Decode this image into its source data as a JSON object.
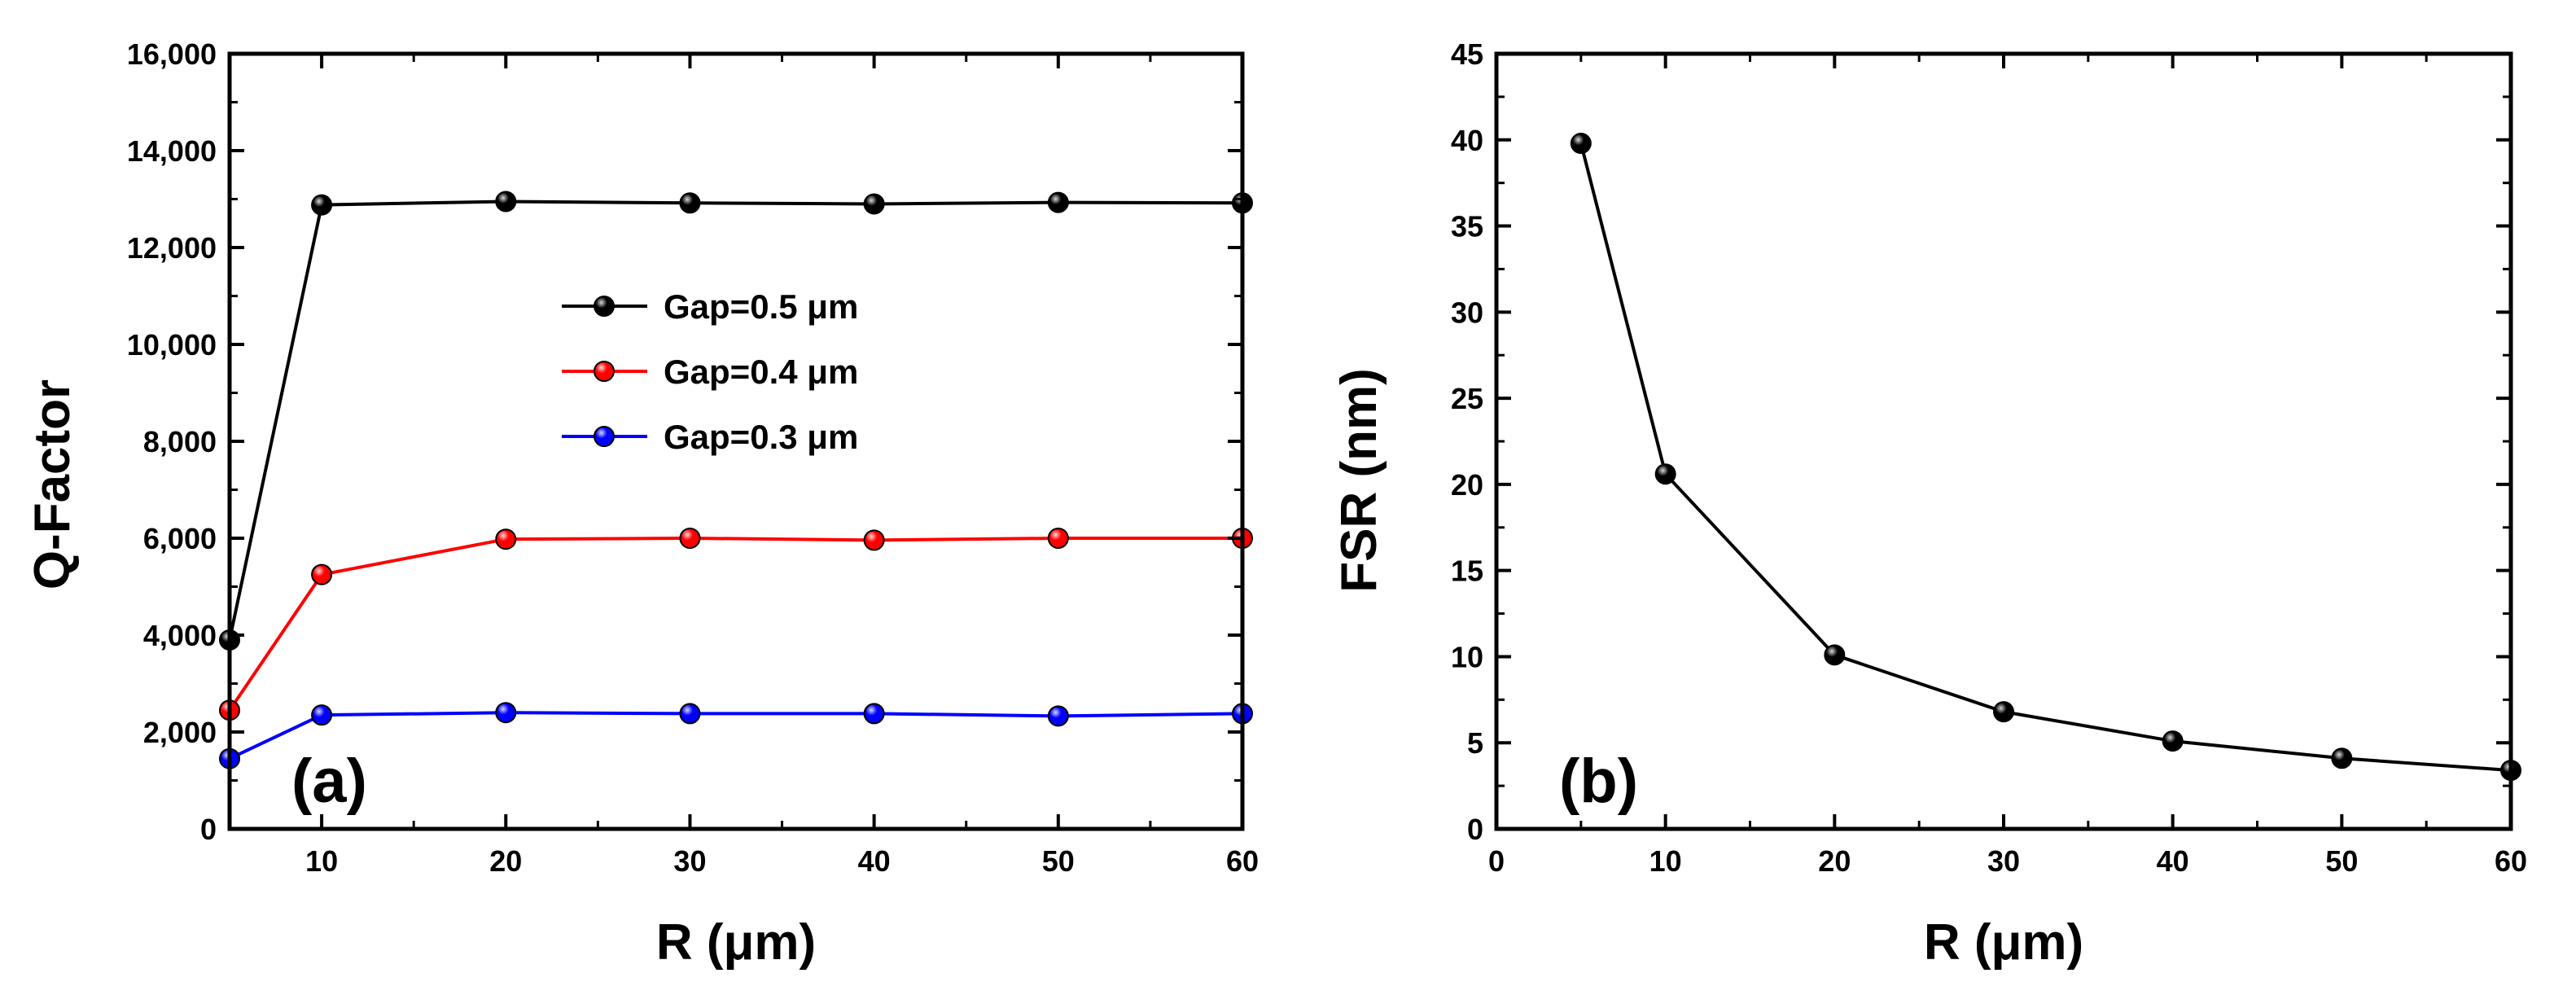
{
  "chart_data": [
    {
      "type": "line",
      "panel_label": "(a)",
      "title": "",
      "xlabel": "R (μm)",
      "ylabel": "Q-Factor",
      "xlim": [
        5,
        60
      ],
      "ylim": [
        0,
        16000
      ],
      "xticks": [
        10,
        20,
        30,
        40,
        50,
        60
      ],
      "xtick_labels": [
        "10",
        "20",
        "30",
        "40",
        "50",
        "60"
      ],
      "yticks": [
        0,
        2000,
        4000,
        6000,
        8000,
        10000,
        12000,
        14000,
        16000
      ],
      "ytick_labels": [
        "0",
        "2,000",
        "4,000",
        "6,000",
        "8,000",
        "10,000",
        "12,000",
        "14,000",
        "16,000"
      ],
      "legend_position": "upper-center",
      "x": [
        5,
        10,
        20,
        30,
        40,
        50,
        60
      ],
      "series": [
        {
          "name": "Gap=0.5 μm",
          "color": "#000000",
          "values": [
            3900,
            12880,
            12950,
            12920,
            12900,
            12930,
            12920
          ]
        },
        {
          "name": "Gap=0.4 μm",
          "color": "#ff0000",
          "values": [
            2450,
            5250,
            5980,
            6000,
            5960,
            6000,
            6000
          ]
        },
        {
          "name": "Gap=0.3 μm",
          "color": "#0000ff",
          "values": [
            1450,
            2350,
            2400,
            2380,
            2380,
            2330,
            2380
          ]
        }
      ]
    },
    {
      "type": "line",
      "panel_label": "(b)",
      "title": "",
      "xlabel": "R (μm)",
      "ylabel": "FSR (nm)",
      "xlim": [
        0,
        60
      ],
      "ylim": [
        0,
        45
      ],
      "xticks": [
        0,
        10,
        20,
        30,
        40,
        50,
        60
      ],
      "xtick_labels": [
        "0",
        "10",
        "20",
        "30",
        "40",
        "50",
        "60"
      ],
      "yticks": [
        0,
        5,
        10,
        15,
        20,
        25,
        30,
        35,
        40,
        45
      ],
      "ytick_labels": [
        "0",
        "5",
        "10",
        "15",
        "20",
        "25",
        "30",
        "35",
        "40",
        "45"
      ],
      "x": [
        5,
        10,
        20,
        30,
        40,
        50,
        60
      ],
      "series": [
        {
          "name": "FSR",
          "color": "#000000",
          "values": [
            39.8,
            20.6,
            10.1,
            6.8,
            5.1,
            4.1,
            3.4
          ]
        }
      ]
    }
  ]
}
